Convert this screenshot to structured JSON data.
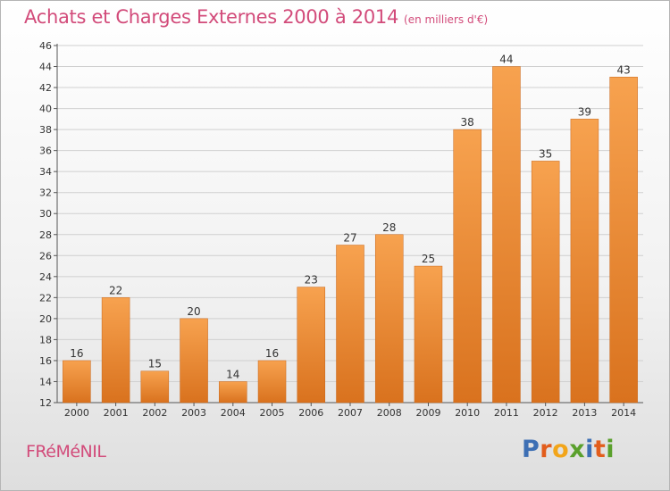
{
  "header": {
    "title": "Achats et Charges Externes 2000 à 2014",
    "subtitle": "(en milliers d'€)"
  },
  "footer": {
    "commune": "FRéMéNIL",
    "logo": "Proxiti"
  },
  "colors": {
    "title": "#d24b7a",
    "bar_light": "#f7a24f",
    "bar_dark": "#d9721e",
    "grid": "#d0d0d0",
    "logo_letters": [
      "#3d6fb4",
      "#e25d1c",
      "#f2a51a",
      "#5aa02c",
      "#3d6fb4",
      "#e25d1c",
      "#5aa02c"
    ]
  },
  "chart_data": {
    "type": "bar",
    "title": "Achats et Charges Externes 2000 à 2014",
    "subtitle": "(en milliers d'€)",
    "xlabel": "",
    "ylabel": "",
    "categories": [
      "2000",
      "2001",
      "2002",
      "2003",
      "2004",
      "2005",
      "2006",
      "2007",
      "2008",
      "2009",
      "2010",
      "2011",
      "2012",
      "2013",
      "2014"
    ],
    "values": [
      16,
      22,
      15,
      20,
      14,
      16,
      23,
      27,
      28,
      25,
      38,
      44,
      35,
      39,
      43
    ],
    "value_labels": [
      "16",
      "22",
      "15",
      "20",
      "14",
      "16",
      "23",
      "27",
      "28",
      "25",
      "38",
      "44",
      "35",
      "39",
      "43"
    ],
    "ylim": [
      12,
      46
    ],
    "yticks": [
      12,
      14,
      16,
      18,
      20,
      22,
      24,
      26,
      28,
      30,
      32,
      34,
      36,
      38,
      40,
      42,
      44,
      46
    ],
    "ytick_labels": [
      "12",
      "14",
      "16",
      "18",
      "20",
      "22",
      "24",
      "26",
      "28",
      "30",
      "32",
      "34",
      "36",
      "38",
      "40",
      "42",
      "44",
      "46"
    ],
    "grid": true,
    "legend": "none"
  }
}
